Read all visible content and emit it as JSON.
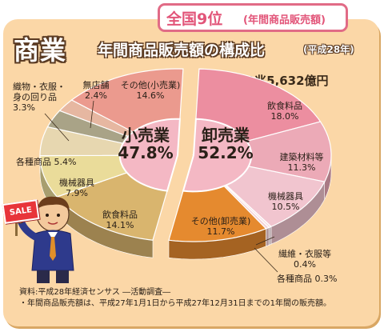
{
  "badge": {
    "rank": "全国9位",
    "rank_note": "(年間商品販売額)"
  },
  "header": {
    "main": "商業",
    "subtitle": "年間商品販売額の構成比",
    "year": "(平成28年)"
  },
  "total": "総額 12兆5,632億円",
  "colors": {
    "frame": "#fbd7a7",
    "badge": "#e16b86",
    "center_disc": "#f4b8c4"
  },
  "chart_data": {
    "type": "pie",
    "groups": [
      {
        "label": "小売業",
        "value": "47.8%",
        "percent": 47.8
      },
      {
        "label": "卸売業",
        "value": "52.2%",
        "percent": 52.2
      }
    ],
    "slices": [
      {
        "group": "卸売業",
        "label": "飲食料品",
        "value": "18.0%",
        "percent": 18.0,
        "color": "#ec8ea0"
      },
      {
        "group": "卸売業",
        "label": "建築材料等",
        "value": "11.3%",
        "percent": 11.3,
        "color": "#ecaab7"
      },
      {
        "group": "卸売業",
        "label": "機械器具",
        "value": "10.5%",
        "percent": 10.5,
        "color": "#f1c5cf"
      },
      {
        "group": "卸売業",
        "label": "各種商品",
        "value": "0.3%",
        "percent": 0.3,
        "color": "#f6dde3"
      },
      {
        "group": "卸売業",
        "label": "繊維・衣服等",
        "value": "0.4%",
        "percent": 0.4,
        "color": "#f4d2d9"
      },
      {
        "group": "卸売業",
        "label": "その他(卸売業)",
        "value": "11.7%",
        "percent": 11.7,
        "color": "#e58a2f"
      },
      {
        "group": "小売業",
        "label": "飲食料品",
        "value": "14.1%",
        "percent": 14.1,
        "color": "#d9b56e"
      },
      {
        "group": "小売業",
        "label": "機械器具",
        "value": "7.9%",
        "percent": 7.9,
        "color": "#eadc9a"
      },
      {
        "group": "小売業",
        "label": "各種商品",
        "value": "5.4%",
        "percent": 5.4,
        "color": "#e7d7b0"
      },
      {
        "group": "小売業",
        "label": "織物・衣服・身の回り品",
        "value": "3.3%",
        "percent": 3.3,
        "color": "#a9a387"
      },
      {
        "group": "小売業",
        "label": "無店舗",
        "value": "2.4%",
        "percent": 2.4,
        "color": "#e6b7a1"
      },
      {
        "group": "小売業",
        "label": "その他(小売業)",
        "value": "14.6%",
        "percent": 14.6,
        "color": "#eb9a8e"
      }
    ]
  },
  "labels": {
    "w_food": {
      "name": "飲食料品",
      "val": "18.0%"
    },
    "w_build": {
      "name": "建築材料等",
      "val": "11.3%"
    },
    "w_mach": {
      "name": "機械器具",
      "val": "10.5%"
    },
    "w_other": {
      "name": "その他(卸売業)",
      "val": "11.7%"
    },
    "w_textile": {
      "name": "繊維・衣服等",
      "val": "0.4%"
    },
    "w_general": {
      "name": "各種商品",
      "val": "0.3%"
    },
    "r_other": {
      "name": "その他(小売業)",
      "val": "14.6%"
    },
    "r_nostore": {
      "name": "無店舗",
      "val": "2.4%"
    },
    "r_textile1": "織物・衣服・",
    "r_textile2": "身の回り品",
    "r_textile_val": "3.3%",
    "r_general": {
      "name": "各種商品",
      "val": "5.4%"
    },
    "r_mach": {
      "name": "機械器具",
      "val": "7.9%"
    },
    "r_food": {
      "name": "飲食料品",
      "val": "14.1%"
    }
  },
  "sale_sign": "SALE",
  "footer": {
    "source": "資料:平成28年経済センサス ―活動調査―",
    "note": "・年間商品販売額は、平成27年1月1日から平成27年12月31日までの1年間の販売額。"
  }
}
